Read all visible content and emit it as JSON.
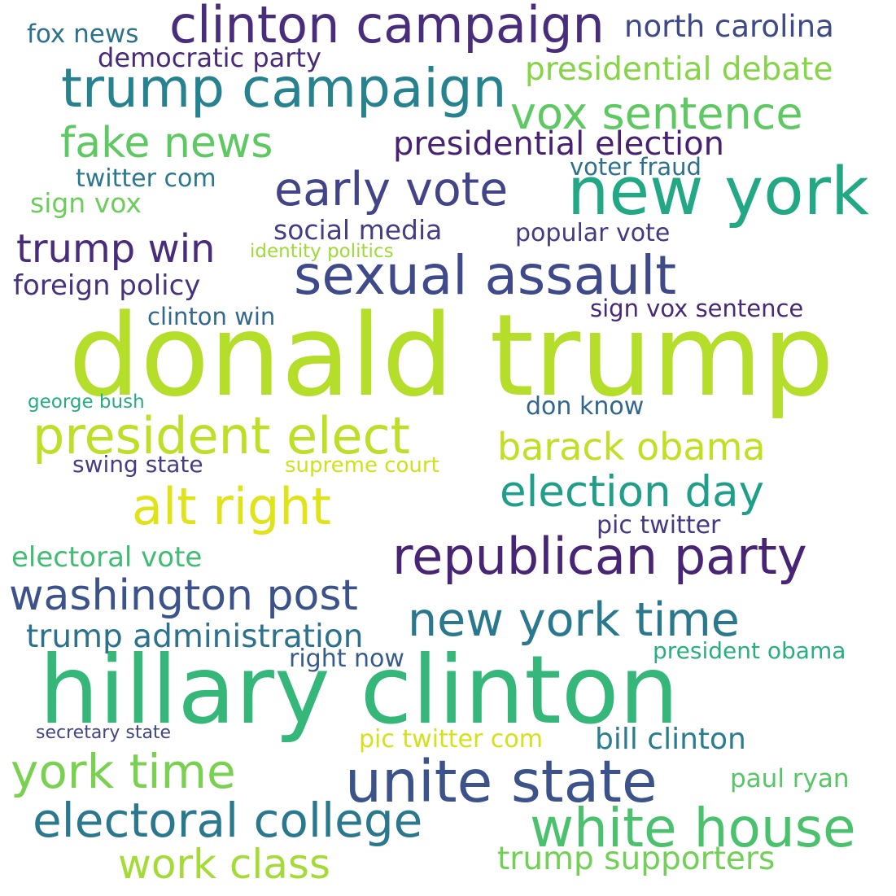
{
  "words": [
    {
      "text": "donald trump",
      "color": "#b5de2b"
    },
    {
      "text": "hillary clinton",
      "color": "#35b779"
    },
    {
      "text": "clinton campaign",
      "color": "#472d7b"
    },
    {
      "text": "trump campaign",
      "color": "#26828e"
    },
    {
      "text": "new york",
      "color": "#22a884"
    },
    {
      "text": "sexual assault",
      "color": "#3e4a89"
    },
    {
      "text": "president elect",
      "color": "#bddf26"
    },
    {
      "text": "republican party",
      "color": "#482475"
    },
    {
      "text": "unite state",
      "color": "#3b528b"
    },
    {
      "text": "white house",
      "color": "#4ac16d"
    },
    {
      "text": "electoral college",
      "color": "#2a788e"
    },
    {
      "text": "york time",
      "color": "#7ad151"
    },
    {
      "text": "alt right",
      "color": "#dfe318"
    },
    {
      "text": "new york time",
      "color": "#2a788e"
    },
    {
      "text": "washington post",
      "color": "#3b528b"
    },
    {
      "text": "early vote",
      "color": "#414487"
    },
    {
      "text": "vox sentence",
      "color": "#5ec962"
    },
    {
      "text": "barack obama",
      "color": "#c2df23"
    },
    {
      "text": "election day",
      "color": "#1f9e89"
    },
    {
      "text": "fake news",
      "color": "#5ec962"
    },
    {
      "text": "trump win",
      "color": "#472d7b"
    },
    {
      "text": "work class",
      "color": "#a5db36"
    },
    {
      "text": "presidential election",
      "color": "#482173"
    },
    {
      "text": "presidential debate",
      "color": "#86d549"
    },
    {
      "text": "trump administration",
      "color": "#2c728e"
    },
    {
      "text": "trump supporters",
      "color": "#73d056"
    },
    {
      "text": "foreign policy",
      "color": "#46327e"
    },
    {
      "text": "electoral vote",
      "color": "#40bd72"
    },
    {
      "text": "north carolina",
      "color": "#3e4989"
    },
    {
      "text": "democratic party",
      "color": "#472a7a"
    },
    {
      "text": "social media",
      "color": "#433e85"
    },
    {
      "text": "bill clinton",
      "color": "#287d8e"
    },
    {
      "text": "fox news",
      "color": "#2c728e"
    },
    {
      "text": "twitter com",
      "color": "#2a788e"
    },
    {
      "text": "sign vox",
      "color": "#6ccd5a"
    },
    {
      "text": "sign vox sentence",
      "color": "#482878"
    },
    {
      "text": "popular vote",
      "color": "#443983"
    },
    {
      "text": "voter fraud",
      "color": "#2d708e"
    },
    {
      "text": "identity politics",
      "color": "#a0da39"
    },
    {
      "text": "clinton win",
      "color": "#31688e"
    },
    {
      "text": "don know",
      "color": "#31678e"
    },
    {
      "text": "george bush",
      "color": "#26ad81"
    },
    {
      "text": "swing state",
      "color": "#433e85"
    },
    {
      "text": "supreme court",
      "color": "#d0e11c"
    },
    {
      "text": "pic twitter",
      "color": "#453781"
    },
    {
      "text": "right now",
      "color": "#365c8d"
    },
    {
      "text": "president obama",
      "color": "#29af7f"
    },
    {
      "text": "pic twitter com",
      "color": "#d5e21a"
    },
    {
      "text": "secretary state",
      "color": "#404688"
    },
    {
      "text": "paul ryan",
      "color": "#56c667"
    }
  ]
}
